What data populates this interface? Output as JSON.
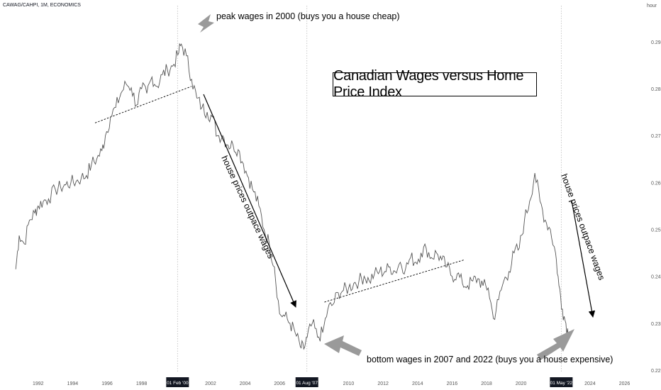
{
  "header": {
    "symbol": "CAWAG/CAHPI, 1M, ECONOMICS",
    "unit": "hour"
  },
  "title": "Canadian Wages versus Home Price Index",
  "annotations": {
    "peak": "peak wages in 2000 (buys you a house cheap)",
    "bottom": "bottom wages in 2007 and 2022 (buys you a house expensive)",
    "diag1": "house prices outpace wages",
    "diag2": "house prices outpace wages"
  },
  "colors": {
    "line": "#555555",
    "arrow_gray": "#999999",
    "badge_bg": "#131722",
    "badge_text": "#ffffff"
  },
  "chart_data": {
    "type": "line",
    "x_ticks": [
      "1992",
      "1994",
      "1996",
      "1998",
      "2002",
      "2004",
      "2006",
      "2010",
      "2012",
      "2014",
      "2016",
      "2018",
      "2020",
      "2024",
      "2026"
    ],
    "x_badges": [
      "01 Feb '00",
      "01 Aug '07",
      "01 May '22"
    ],
    "y_ticks": [
      "0.29",
      "0.28",
      "0.27",
      "0.26",
      "0.25",
      "0.24",
      "0.23",
      "0.22"
    ],
    "ylim": [
      0.2205,
      0.2955
    ],
    "xlim": [
      1990.2,
      2026.8
    ],
    "series": [
      {
        "x": [
          1990.7,
          1990.9,
          1991.2,
          1991.5,
          1991.8,
          1992.0,
          1992.3,
          1992.6,
          1993.0,
          1993.3,
          1993.6,
          1993.9,
          1994.2,
          1994.5,
          1994.8,
          1995.1,
          1995.4,
          1995.7,
          1995.9,
          1996.2,
          1996.5,
          1996.8,
          1997.1,
          1997.4,
          1997.7,
          1998.0,
          1998.3,
          1998.6,
          1998.9,
          1999.2,
          1999.5,
          1999.8,
          2000.1,
          2000.3,
          2000.6,
          2000.9,
          2001.2,
          2001.5,
          2001.8,
          2002.1,
          2002.4,
          2002.7,
          2003.0,
          2003.3,
          2003.6,
          2003.9,
          2004.2,
          2004.5,
          2004.8,
          2005.1,
          2005.4,
          2005.7,
          2006.0,
          2006.3,
          2006.6,
          2006.9,
          2007.2,
          2007.4,
          2007.6,
          2007.9,
          2008.2,
          2008.5,
          2008.8,
          2009.1,
          2009.4,
          2009.7,
          2010.0,
          2010.3,
          2010.6,
          2010.9,
          2011.2,
          2011.5,
          2011.8,
          2012.1,
          2012.4,
          2012.7,
          2013.0,
          2013.3,
          2013.6,
          2013.9,
          2014.2,
          2014.5,
          2014.8,
          2015.1,
          2015.4,
          2015.7,
          2016.0,
          2016.3,
          2016.6,
          2016.9,
          2017.2,
          2017.5,
          2017.8,
          2018.1,
          2018.4,
          2018.7,
          2019.0,
          2019.3,
          2019.6,
          2019.9,
          2020.2,
          2020.5,
          2020.8,
          2021.1,
          2021.4,
          2021.7,
          2022.0,
          2022.2,
          2022.4,
          2022.6,
          2022.8
        ],
        "y": [
          0.2415,
          0.2487,
          0.2469,
          0.252,
          0.2535,
          0.255,
          0.256,
          0.2565,
          0.2585,
          0.259,
          0.2595,
          0.26,
          0.2602,
          0.261,
          0.2615,
          0.264,
          0.265,
          0.2668,
          0.27,
          0.274,
          0.276,
          0.279,
          0.281,
          0.2802,
          0.2765,
          0.28,
          0.279,
          0.2825,
          0.2805,
          0.283,
          0.284,
          0.2848,
          0.2872,
          0.2895,
          0.287,
          0.282,
          0.278,
          0.276,
          0.275,
          0.274,
          0.27,
          0.27,
          0.268,
          0.268,
          0.267,
          0.264,
          0.261,
          0.258,
          0.255,
          0.25,
          0.247,
          0.242,
          0.232,
          0.2315,
          0.23,
          0.228,
          0.225,
          0.2245,
          0.227,
          0.23,
          0.227,
          0.228,
          0.233,
          0.234,
          0.2365,
          0.237,
          0.2375,
          0.2385,
          0.239,
          0.24,
          0.239,
          0.2405,
          0.241,
          0.241,
          0.242,
          0.241,
          0.243,
          0.2415,
          0.244,
          0.243,
          0.245,
          0.246,
          0.244,
          0.245,
          0.2435,
          0.242,
          0.24,
          0.2405,
          0.2385,
          0.238,
          0.239,
          0.2395,
          0.238,
          0.2375,
          0.231,
          0.235,
          0.239,
          0.241,
          0.245,
          0.246,
          0.252,
          0.256,
          0.262,
          0.256,
          0.252,
          0.25,
          0.245,
          0.238,
          0.233,
          0.23,
          0.227
        ]
      }
    ],
    "trendlines": [
      {
        "x": [
          1995.3,
          2000.9
        ],
        "y": [
          0.2727,
          0.2805
        ]
      },
      {
        "x": [
          2008.6,
          2016.7
        ],
        "y": [
          0.2345,
          0.2435
        ]
      }
    ],
    "grid": false,
    "legend": "none"
  }
}
